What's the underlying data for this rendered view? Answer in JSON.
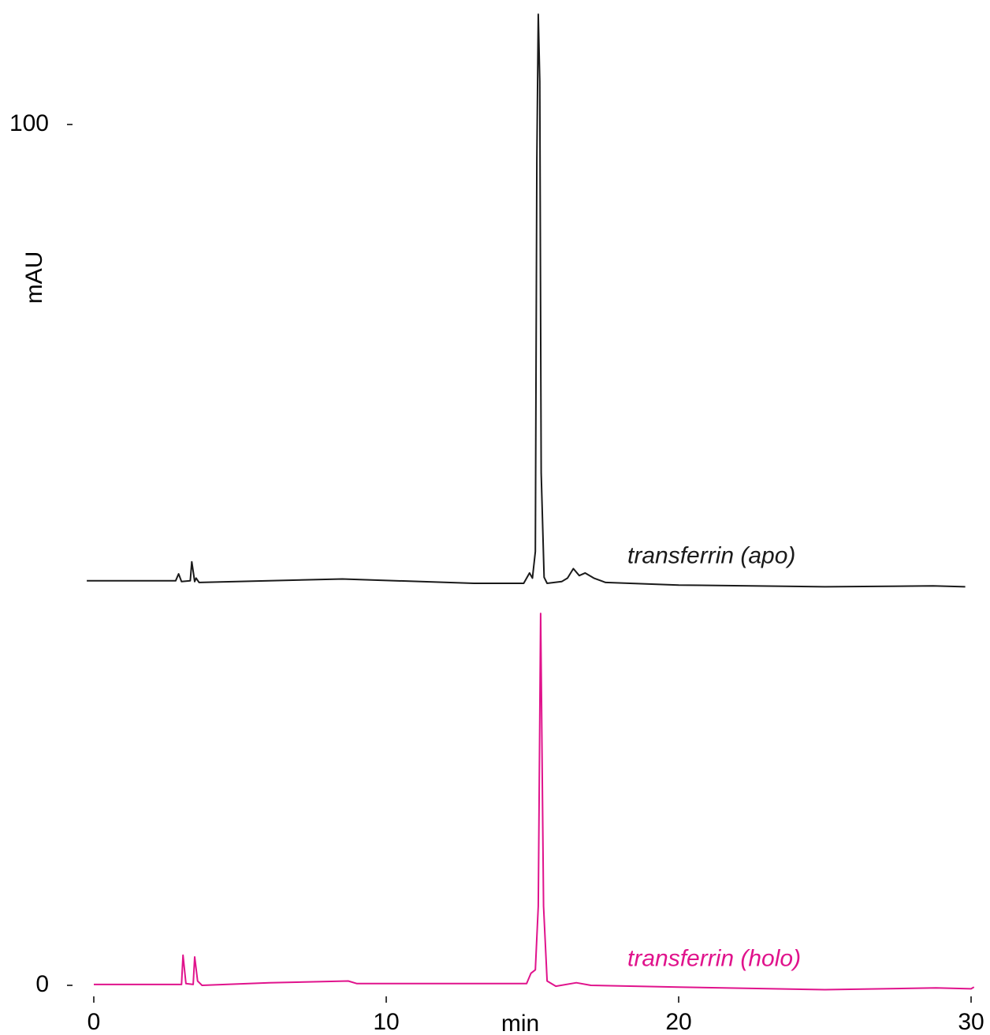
{
  "chart_data": {
    "type": "line",
    "xlabel": "min",
    "ylabel": "mAU",
    "xlim": [
      0,
      30
    ],
    "xticks": [
      0,
      10,
      20,
      30
    ],
    "ylim": [
      0,
      114
    ],
    "yticks": [
      0,
      100
    ],
    "series": [
      {
        "name": "transferrin (apo)",
        "color": "#1a1a1a",
        "x": [
          -0.24,
          2.8,
          2.9,
          3.0,
          3.3,
          3.35,
          3.45,
          3.5,
          3.6,
          8.5,
          13,
          14.7,
          14.9,
          15.0,
          15.1,
          15.15,
          15.2,
          15.25,
          15.3,
          15.4,
          15.5,
          16.0,
          16.2,
          16.4,
          16.6,
          16.8,
          17.1,
          17.5,
          20,
          25,
          28.7,
          29.8
        ],
        "values": [
          47.0,
          47.0,
          47.8,
          46.9,
          47.0,
          49.2,
          46.9,
          47.3,
          46.8,
          47.2,
          46.7,
          46.7,
          47.9,
          47.3,
          50.4,
          96,
          112.8,
          105,
          59.5,
          47.4,
          46.7,
          46.9,
          47.3,
          48.4,
          47.6,
          47.9,
          47.3,
          46.8,
          46.5,
          46.3,
          46.4,
          46.3
        ]
      },
      {
        "name": "transferrin (holo)",
        "color": "#e0138c",
        "x": [
          0,
          3.0,
          3.05,
          3.15,
          3.4,
          3.45,
          3.55,
          3.7,
          6,
          8.7,
          9,
          14.8,
          14.95,
          15.1,
          15.2,
          15.28,
          15.38,
          15.5,
          15.8,
          16.5,
          17,
          20,
          25,
          28.8,
          30,
          30.1
        ],
        "values": [
          0.1,
          0.1,
          3.5,
          0.2,
          0.1,
          3.3,
          0.5,
          0,
          0.3,
          0.5,
          0.2,
          0.2,
          1.4,
          1.8,
          9.2,
          43.2,
          9.2,
          0.5,
          -0.1,
          0.3,
          0,
          -0.2,
          -0.5,
          -0.3,
          -0.4,
          -0.2
        ]
      }
    ]
  }
}
